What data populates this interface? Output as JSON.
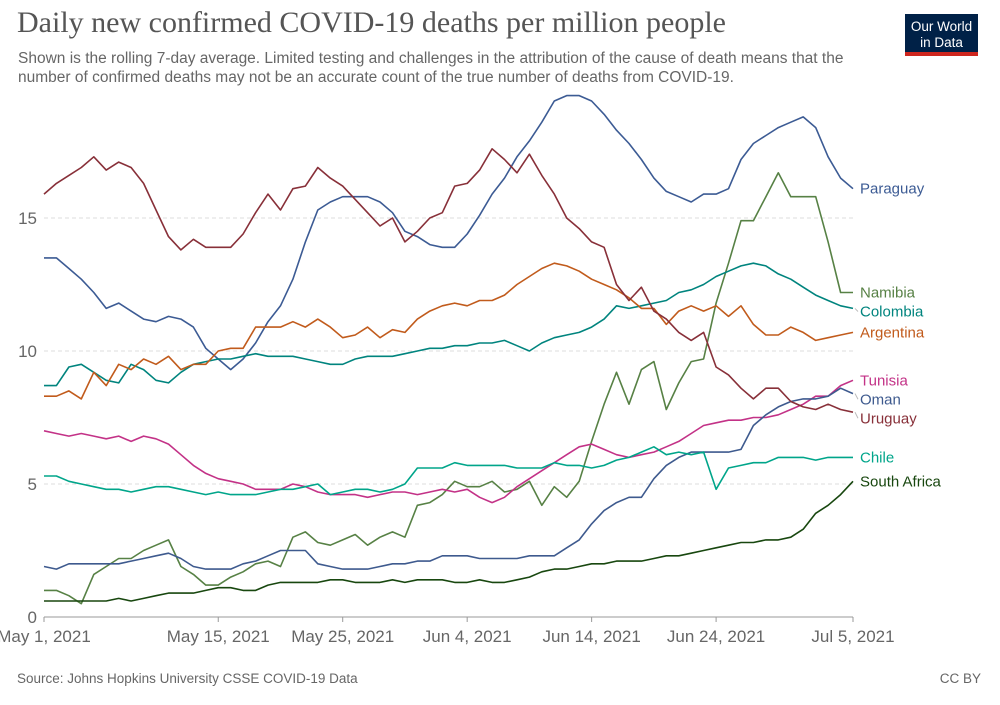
{
  "header": {
    "title": "Daily new confirmed COVID-19 deaths per million people",
    "subtitle": "Shown is the rolling 7-day average. Limited testing and challenges in the attribution of the cause of death means that the number of confirmed deaths may not be an accurate count of the true number of deaths from COVID-19."
  },
  "logo": {
    "line1": "Our World",
    "line2": "in Data",
    "bg_color": "#002147",
    "accent_color": "#ce261e"
  },
  "footer": {
    "source": "Source: Johns Hopkins University CSSE COVID-19 Data",
    "license": "CC BY"
  },
  "chart_data": {
    "type": "line",
    "title": "Daily new confirmed COVID-19 deaths per million people",
    "xlabel": "",
    "ylabel": "",
    "ylim": [
      0,
      19
    ],
    "xlim": [
      0,
      65
    ],
    "y_ticks": [
      0,
      5,
      10,
      15
    ],
    "x_ticks": [
      {
        "day": 0,
        "label": "May 1, 2021"
      },
      {
        "day": 14,
        "label": "May 15, 2021"
      },
      {
        "day": 24,
        "label": "May 25, 2021"
      },
      {
        "day": 34,
        "label": "Jun 4, 2021"
      },
      {
        "day": 44,
        "label": "Jun 14, 2021"
      },
      {
        "day": 54,
        "label": "Jun 24, 2021"
      },
      {
        "day": 65,
        "label": "Jul 5, 2021"
      }
    ],
    "grid": true,
    "x_day_index": "days since May 1, 2021",
    "series": [
      {
        "name": "Paraguay",
        "color": "#3c5b94",
        "values": [
          13.5,
          13.5,
          13.1,
          12.7,
          12.2,
          11.6,
          11.8,
          11.5,
          11.2,
          11.1,
          11.3,
          11.2,
          10.9,
          10.1,
          9.7,
          9.3,
          9.7,
          10.3,
          11.1,
          11.7,
          12.7,
          14.1,
          15.3,
          15.6,
          15.8,
          15.8,
          15.8,
          15.6,
          15.2,
          14.5,
          14.3,
          14.0,
          13.9,
          13.9,
          14.4,
          15.1,
          15.9,
          16.5,
          17.3,
          17.9,
          18.6,
          19.4,
          19.6,
          19.6,
          19.4,
          18.9,
          18.3,
          17.8,
          17.2,
          16.5,
          16.0,
          15.8,
          15.6,
          15.9,
          15.9,
          16.1,
          17.2,
          17.8,
          18.1,
          18.4,
          18.6,
          18.8,
          18.4,
          17.3,
          16.5,
          16.1
        ]
      },
      {
        "name": "Namibia",
        "color": "#578145",
        "values": [
          1.0,
          1.0,
          0.8,
          0.5,
          1.6,
          1.9,
          2.2,
          2.2,
          2.5,
          2.7,
          2.9,
          1.9,
          1.6,
          1.2,
          1.2,
          1.5,
          1.7,
          2.0,
          2.1,
          1.9,
          3.0,
          3.2,
          2.8,
          2.7,
          2.9,
          3.1,
          2.7,
          3.0,
          3.2,
          3.0,
          4.2,
          4.3,
          4.6,
          5.1,
          4.9,
          4.9,
          5.1,
          4.7,
          4.8,
          5.1,
          4.2,
          4.9,
          4.5,
          5.1,
          6.6,
          8.0,
          9.2,
          8.0,
          9.3,
          9.6,
          7.8,
          8.8,
          9.6,
          9.7,
          11.8,
          13.3,
          14.9,
          14.9,
          15.8,
          16.7,
          15.8,
          15.8,
          15.8,
          14.1,
          12.2,
          12.2
        ]
      },
      {
        "name": "Colombia",
        "color": "#00847e",
        "values": [
          8.7,
          8.7,
          9.4,
          9.5,
          9.2,
          8.9,
          8.8,
          9.5,
          9.3,
          8.9,
          8.8,
          9.2,
          9.5,
          9.6,
          9.7,
          9.7,
          9.8,
          9.9,
          9.8,
          9.8,
          9.8,
          9.7,
          9.6,
          9.5,
          9.5,
          9.7,
          9.8,
          9.8,
          9.8,
          9.9,
          10.0,
          10.1,
          10.1,
          10.2,
          10.2,
          10.3,
          10.3,
          10.4,
          10.2,
          10.0,
          10.3,
          10.5,
          10.6,
          10.7,
          10.9,
          11.2,
          11.7,
          11.6,
          11.7,
          11.8,
          11.9,
          12.2,
          12.3,
          12.5,
          12.8,
          13.0,
          13.2,
          13.3,
          13.2,
          12.9,
          12.7,
          12.4,
          12.1,
          11.9,
          11.7,
          11.6
        ]
      },
      {
        "name": "Argentina",
        "color": "#c15b1c",
        "values": [
          8.3,
          8.3,
          8.5,
          8.2,
          9.2,
          8.7,
          9.5,
          9.3,
          9.7,
          9.5,
          9.8,
          9.3,
          9.5,
          9.5,
          10.0,
          10.1,
          10.1,
          10.9,
          10.9,
          10.9,
          11.1,
          10.9,
          11.2,
          10.9,
          10.5,
          10.6,
          10.9,
          10.5,
          10.8,
          10.7,
          11.2,
          11.5,
          11.7,
          11.8,
          11.7,
          11.9,
          11.9,
          12.1,
          12.5,
          12.8,
          13.1,
          13.3,
          13.2,
          13.0,
          12.7,
          12.5,
          12.3,
          12.0,
          11.6,
          11.6,
          11.0,
          11.5,
          11.7,
          11.5,
          11.7,
          11.3,
          11.7,
          11.0,
          10.6,
          10.6,
          10.9,
          10.7,
          10.4,
          10.5,
          10.6,
          10.7
        ]
      },
      {
        "name": "Tunisia",
        "color": "#c33287",
        "values": [
          7.0,
          6.9,
          6.8,
          6.9,
          6.8,
          6.7,
          6.8,
          6.6,
          6.8,
          6.7,
          6.5,
          6.1,
          5.7,
          5.4,
          5.2,
          5.1,
          5.0,
          4.8,
          4.8,
          4.8,
          5.0,
          4.9,
          4.7,
          4.6,
          4.6,
          4.6,
          4.5,
          4.6,
          4.7,
          4.7,
          4.6,
          4.7,
          4.8,
          4.7,
          4.8,
          4.5,
          4.3,
          4.5,
          4.9,
          5.2,
          5.5,
          5.8,
          6.1,
          6.4,
          6.5,
          6.3,
          6.1,
          6.0,
          6.1,
          6.2,
          6.4,
          6.6,
          6.9,
          7.2,
          7.3,
          7.4,
          7.4,
          7.5,
          7.5,
          7.6,
          7.8,
          8.0,
          8.3,
          8.3,
          8.7,
          8.9
        ]
      },
      {
        "name": "Oman",
        "color": "#3e5a8e",
        "values": [
          1.9,
          1.8,
          2.0,
          2.0,
          2.0,
          2.0,
          2.0,
          2.1,
          2.2,
          2.3,
          2.4,
          2.2,
          1.9,
          1.8,
          1.8,
          1.8,
          2.0,
          2.1,
          2.3,
          2.5,
          2.5,
          2.5,
          2.0,
          1.9,
          1.8,
          1.8,
          1.8,
          1.9,
          2.0,
          2.0,
          2.1,
          2.1,
          2.3,
          2.3,
          2.3,
          2.2,
          2.2,
          2.2,
          2.2,
          2.3,
          2.3,
          2.3,
          2.6,
          2.9,
          3.5,
          4.0,
          4.3,
          4.5,
          4.5,
          5.2,
          5.7,
          6.0,
          6.2,
          6.2,
          6.2,
          6.2,
          6.3,
          7.2,
          7.6,
          7.9,
          8.1,
          8.2,
          8.2,
          8.3,
          8.6,
          8.4
        ]
      },
      {
        "name": "Uruguay",
        "color": "#883039",
        "values": [
          15.9,
          16.3,
          16.6,
          16.9,
          17.3,
          16.8,
          17.1,
          16.9,
          16.3,
          15.3,
          14.3,
          13.8,
          14.2,
          13.9,
          13.9,
          13.9,
          14.4,
          15.2,
          15.9,
          15.3,
          16.1,
          16.2,
          16.9,
          16.5,
          16.2,
          15.7,
          15.2,
          14.7,
          15.0,
          14.1,
          14.5,
          15.0,
          15.2,
          16.2,
          16.3,
          16.8,
          17.6,
          17.2,
          16.7,
          17.4,
          16.6,
          15.9,
          15.0,
          14.6,
          14.1,
          13.9,
          12.5,
          11.9,
          12.4,
          11.5,
          11.2,
          10.7,
          10.4,
          10.7,
          9.4,
          9.1,
          8.6,
          8.2,
          8.6,
          8.6,
          8.1,
          7.9,
          7.8,
          8.0,
          7.8,
          7.7
        ]
      },
      {
        "name": "Chile",
        "color": "#00a58a",
        "values": [
          5.3,
          5.3,
          5.1,
          5.0,
          4.9,
          4.8,
          4.8,
          4.7,
          4.8,
          4.9,
          4.9,
          4.8,
          4.7,
          4.6,
          4.7,
          4.6,
          4.6,
          4.6,
          4.7,
          4.8,
          4.8,
          4.9,
          5.0,
          4.6,
          4.7,
          4.8,
          4.8,
          4.7,
          4.8,
          5.0,
          5.6,
          5.6,
          5.6,
          5.8,
          5.7,
          5.7,
          5.7,
          5.7,
          5.6,
          5.6,
          5.6,
          5.8,
          5.7,
          5.7,
          5.6,
          5.7,
          5.9,
          6.0,
          6.2,
          6.4,
          6.1,
          6.2,
          6.1,
          6.2,
          4.8,
          5.6,
          5.7,
          5.8,
          5.8,
          6.0,
          6.0,
          6.0,
          5.9,
          6.0,
          6.0,
          6.0
        ]
      },
      {
        "name": "South Africa",
        "color": "#18470f",
        "values": [
          0.6,
          0.6,
          0.6,
          0.6,
          0.6,
          0.6,
          0.7,
          0.6,
          0.7,
          0.8,
          0.9,
          0.9,
          0.9,
          1.0,
          1.1,
          1.1,
          1.0,
          1.0,
          1.2,
          1.3,
          1.3,
          1.3,
          1.3,
          1.4,
          1.4,
          1.3,
          1.3,
          1.3,
          1.4,
          1.3,
          1.4,
          1.4,
          1.4,
          1.3,
          1.3,
          1.4,
          1.3,
          1.3,
          1.4,
          1.5,
          1.7,
          1.8,
          1.8,
          1.9,
          2.0,
          2.0,
          2.1,
          2.1,
          2.1,
          2.2,
          2.3,
          2.3,
          2.4,
          2.5,
          2.6,
          2.7,
          2.8,
          2.8,
          2.9,
          2.9,
          3.0,
          3.3,
          3.9,
          4.2,
          4.6,
          5.1
        ]
      }
    ],
    "label_order": [
      "Paraguay",
      "Namibia",
      "Colombia",
      "Argentina",
      "Tunisia",
      "Oman",
      "Uruguay",
      "Chile",
      "South Africa"
    ]
  }
}
